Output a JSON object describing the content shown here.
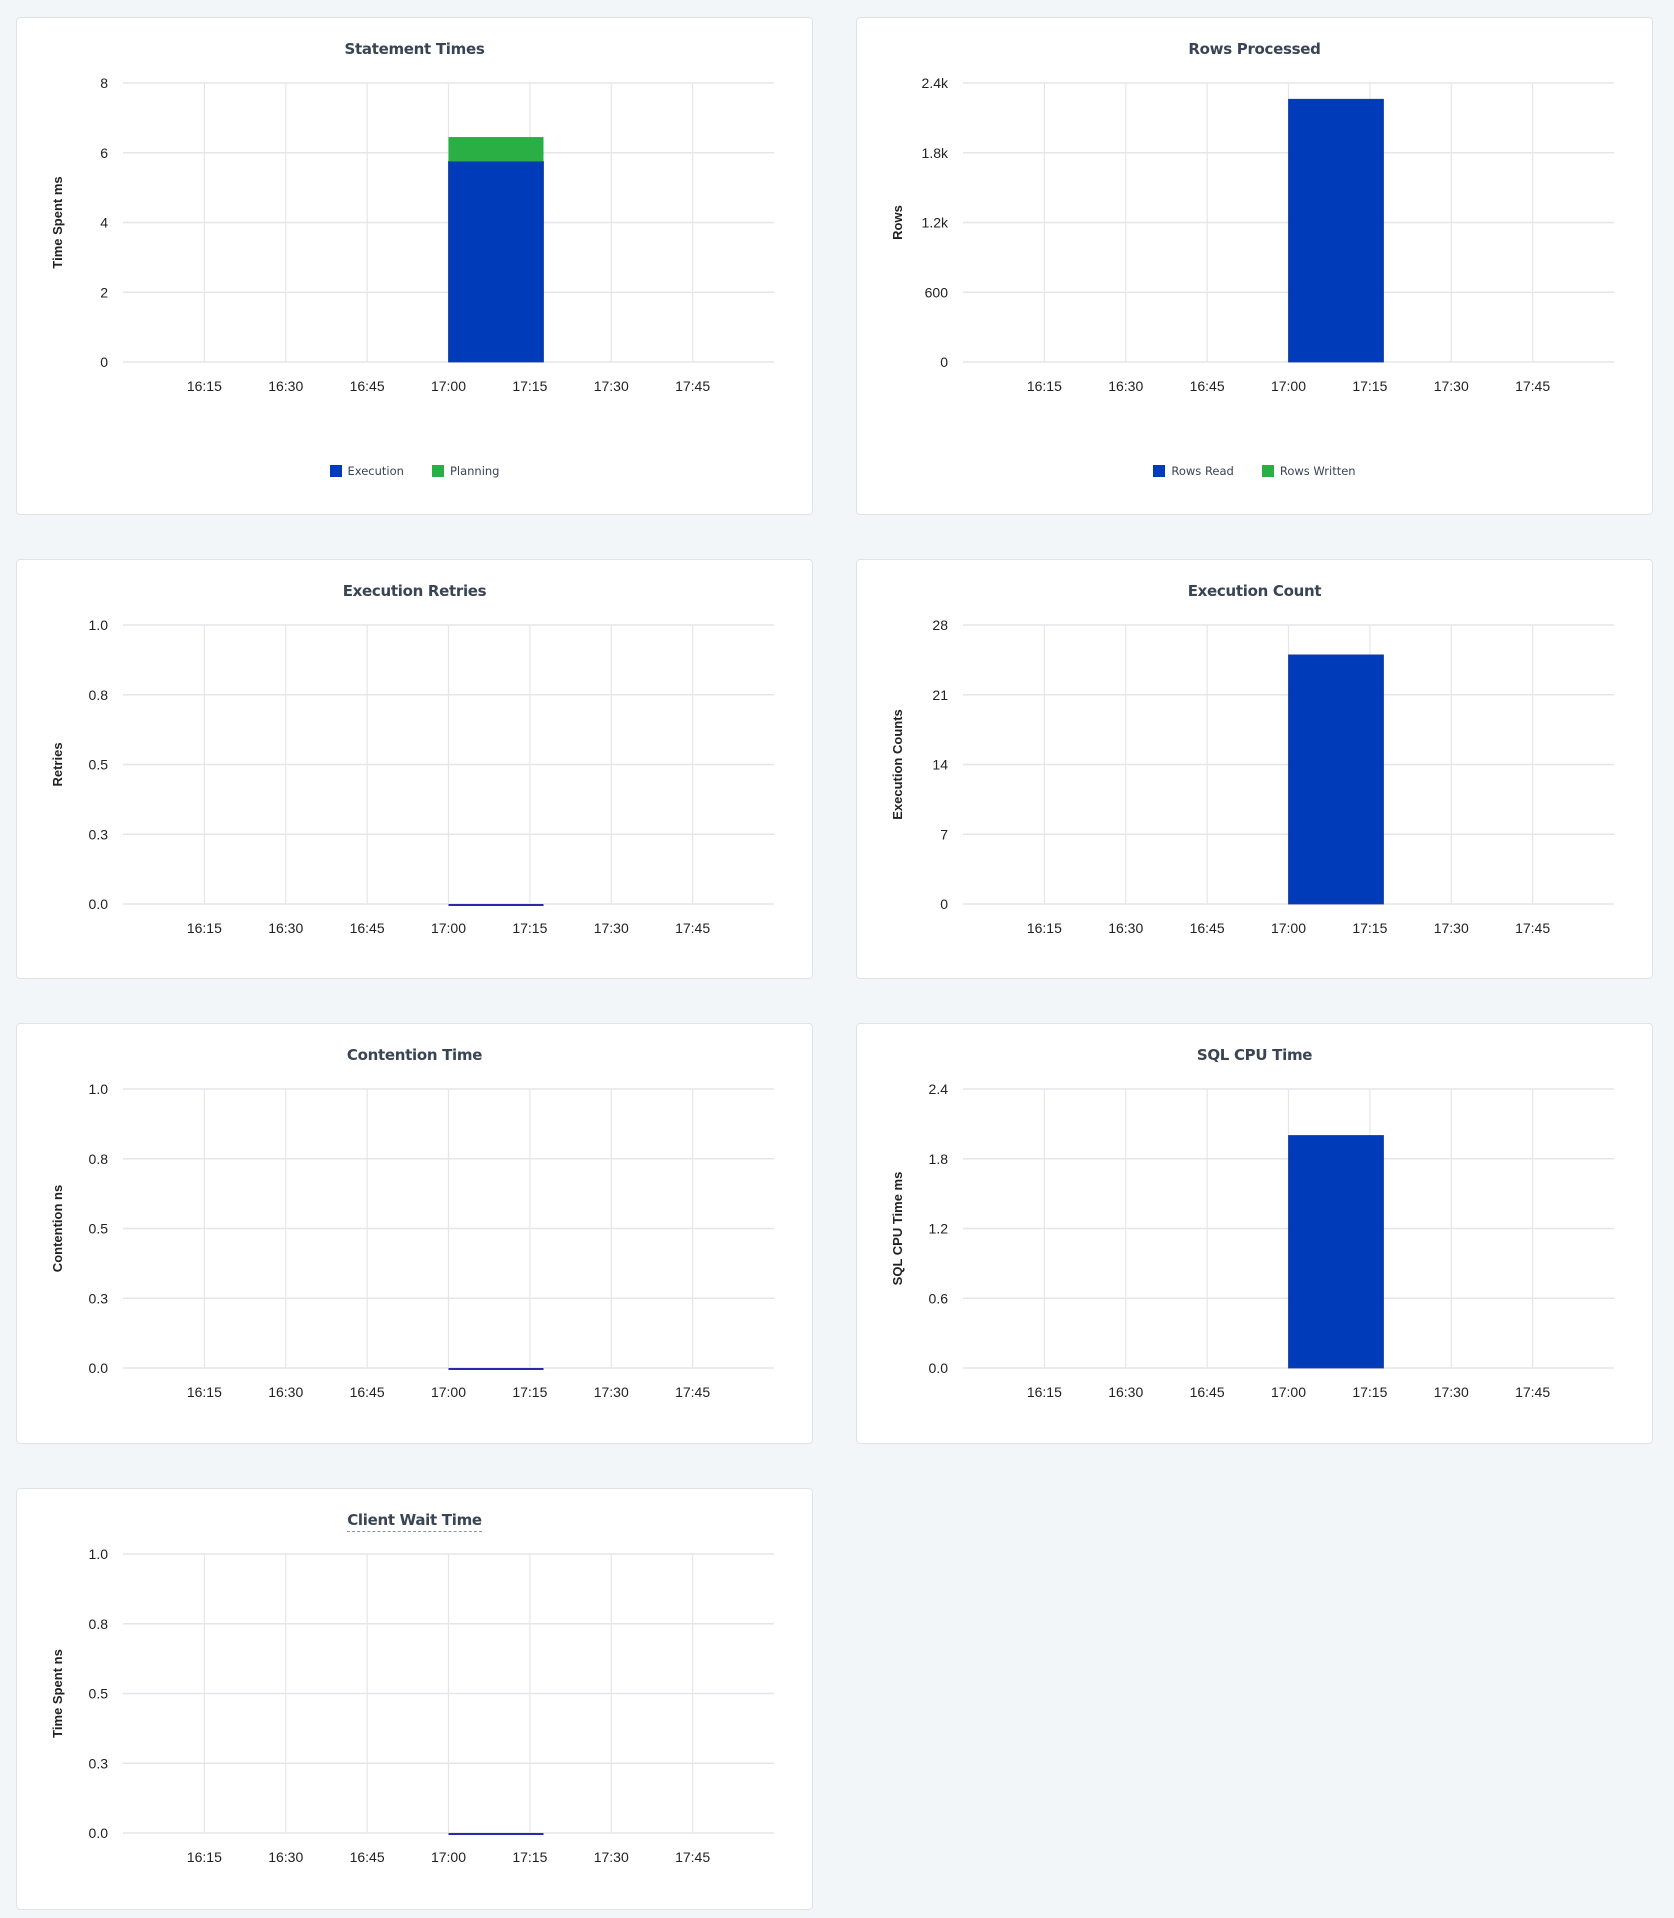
{
  "colors": {
    "primary": "#003cba",
    "secondary": "#2aaf44",
    "zero_line": "#2a2aa8",
    "grid": "#e4e6ea",
    "background": "#f3f6f9"
  },
  "chart_data": [
    {
      "type": "bar",
      "stacked": true,
      "title": "Statement Times",
      "ylabel": "Time Spent ms",
      "x_ticks": [
        "16:15",
        "16:30",
        "16:45",
        "17:00",
        "17:15",
        "17:30",
        "17:45"
      ],
      "xlim": [
        "16:00",
        "18:00"
      ],
      "y_ticks": [
        "0",
        "2",
        "4",
        "6",
        "8"
      ],
      "ylim": [
        0,
        8
      ],
      "x": [
        "17:00"
      ],
      "series": [
        {
          "name": "Execution",
          "values": [
            5.75
          ],
          "color": "#003cba"
        },
        {
          "name": "Planning",
          "values": [
            0.7
          ],
          "color": "#2aaf44"
        }
      ],
      "legend": "bottom",
      "grid": true
    },
    {
      "type": "bar",
      "stacked": true,
      "title": "Rows Processed",
      "ylabel": "Rows",
      "x_ticks": [
        "16:15",
        "16:30",
        "16:45",
        "17:00",
        "17:15",
        "17:30",
        "17:45"
      ],
      "xlim": [
        "16:00",
        "18:00"
      ],
      "y_ticks": [
        "0",
        "600",
        "1.2k",
        "1.8k",
        "2.4k"
      ],
      "ylim": [
        0,
        2400
      ],
      "x": [
        "17:00"
      ],
      "series": [
        {
          "name": "Rows Read",
          "values": [
            2260
          ],
          "color": "#003cba"
        },
        {
          "name": "Rows Written",
          "values": [
            0
          ],
          "color": "#2aaf44"
        }
      ],
      "legend": "bottom",
      "grid": true
    },
    {
      "type": "bar",
      "title": "Execution Retries",
      "ylabel": "Retries",
      "x_ticks": [
        "16:15",
        "16:30",
        "16:45",
        "17:00",
        "17:15",
        "17:30",
        "17:45"
      ],
      "xlim": [
        "16:00",
        "18:00"
      ],
      "y_ticks": [
        "0.0",
        "0.3",
        "0.5",
        "0.8",
        "1.0"
      ],
      "ylim": [
        0,
        1
      ],
      "x": [
        "17:00"
      ],
      "series": [
        {
          "values": [
            0
          ],
          "color": "#003cba"
        }
      ],
      "grid": true
    },
    {
      "type": "bar",
      "title": "Execution Count",
      "ylabel": "Execution Counts",
      "x_ticks": [
        "16:15",
        "16:30",
        "16:45",
        "17:00",
        "17:15",
        "17:30",
        "17:45"
      ],
      "xlim": [
        "16:00",
        "18:00"
      ],
      "y_ticks": [
        "0",
        "7",
        "14",
        "21",
        "28"
      ],
      "ylim": [
        0,
        28
      ],
      "x": [
        "17:00"
      ],
      "series": [
        {
          "values": [
            25
          ],
          "color": "#003cba"
        }
      ],
      "grid": true
    },
    {
      "type": "bar",
      "title": "Contention Time",
      "ylabel": "Contention ns",
      "x_ticks": [
        "16:15",
        "16:30",
        "16:45",
        "17:00",
        "17:15",
        "17:30",
        "17:45"
      ],
      "xlim": [
        "16:00",
        "18:00"
      ],
      "y_ticks": [
        "0.0",
        "0.3",
        "0.5",
        "0.8",
        "1.0"
      ],
      "ylim": [
        0,
        1
      ],
      "x": [
        "17:00"
      ],
      "series": [
        {
          "values": [
            0
          ],
          "color": "#003cba"
        }
      ],
      "grid": true
    },
    {
      "type": "bar",
      "title": "SQL CPU Time",
      "ylabel": "SQL CPU Time ms",
      "x_ticks": [
        "16:15",
        "16:30",
        "16:45",
        "17:00",
        "17:15",
        "17:30",
        "17:45"
      ],
      "xlim": [
        "16:00",
        "18:00"
      ],
      "y_ticks": [
        "0.0",
        "0.6",
        "1.2",
        "1.8",
        "2.4"
      ],
      "ylim": [
        0,
        2.4
      ],
      "x": [
        "17:00"
      ],
      "series": [
        {
          "values": [
            2.0
          ],
          "color": "#003cba"
        }
      ],
      "grid": true
    },
    {
      "type": "bar",
      "title": "Client Wait Time",
      "ylabel": "Time Spent ns",
      "title_has_tooltip": true,
      "x_ticks": [
        "16:15",
        "16:30",
        "16:45",
        "17:00",
        "17:15",
        "17:30",
        "17:45"
      ],
      "xlim": [
        "16:00",
        "18:00"
      ],
      "y_ticks": [
        "0.0",
        "0.3",
        "0.5",
        "0.8",
        "1.0"
      ],
      "ylim": [
        0,
        1
      ],
      "x": [
        "17:00"
      ],
      "series": [
        {
          "values": [
            0
          ],
          "color": "#003cba"
        }
      ],
      "grid": true
    }
  ]
}
